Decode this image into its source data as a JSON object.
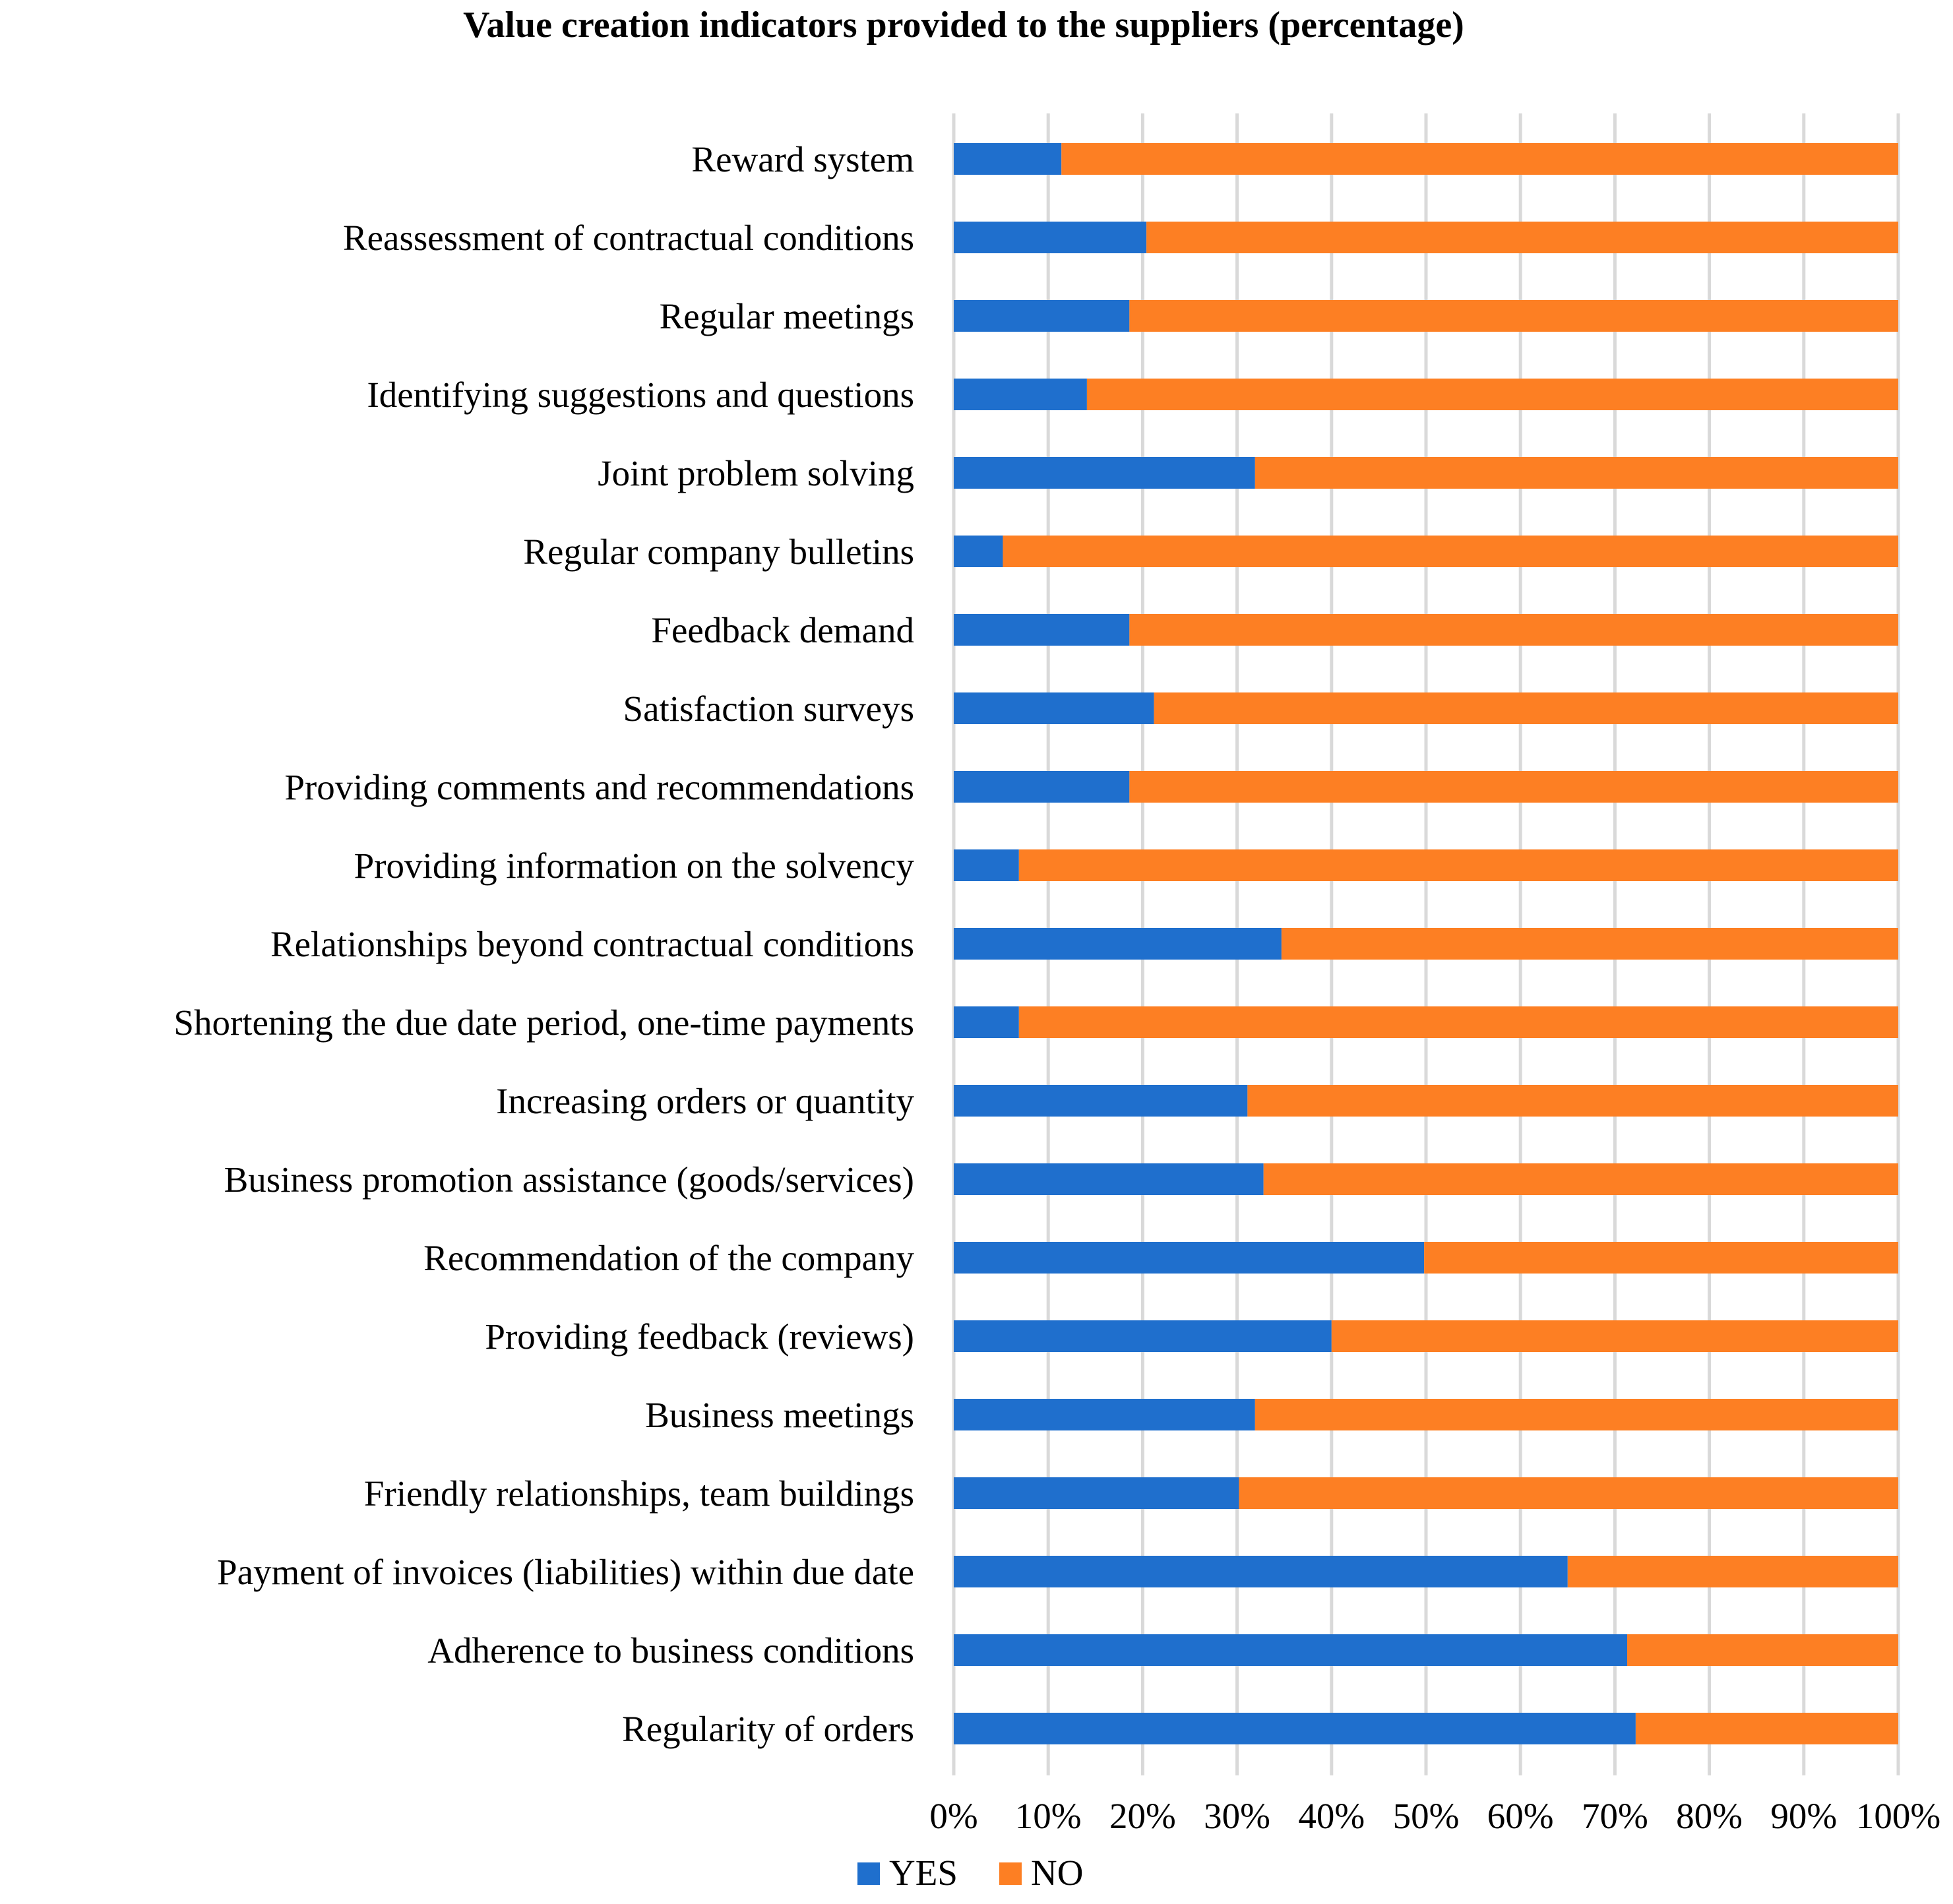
{
  "chart_data": {
    "type": "bar",
    "orientation": "horizontal",
    "stacked": true,
    "percent_stacked": true,
    "title": "Value creation indicators provided to the suppliers (percentage)",
    "xlabel": "",
    "ylabel": "",
    "xlim": [
      0,
      100
    ],
    "grid": true,
    "legend_position": "bottom",
    "x_ticks": [
      "0%",
      "10%",
      "20%",
      "30%",
      "40%",
      "50%",
      "60%",
      "70%",
      "80%",
      "90%",
      "100%"
    ],
    "categories": [
      "Reward system",
      "Reassessment of contractual conditions",
      "Regular meetings",
      "Identifying suggestions and questions",
      "Joint problem solving",
      "Regular company bulletins",
      "Feedback demand",
      "Satisfaction surveys",
      "Providing comments and recommendations",
      "Providing information on the solvency",
      "Relationships beyond contractual conditions",
      "Shortening the due date period, one-time payments",
      "Increasing  orders or quantity",
      "Business promotion assistance (goods/services)",
      "Recommendation of the company",
      "Providing feedback (reviews)",
      "Business meetings",
      "Friendly relationships, team buildings",
      "Payment of invoices (liabilities) within due date",
      "Adherence to business conditions",
      "Regularity of orders"
    ],
    "series": [
      {
        "name": "YES",
        "color": "#1f6fcd",
        "values": [
          11.4,
          20.4,
          18.6,
          14.1,
          31.9,
          5.2,
          18.6,
          21.2,
          18.6,
          6.9,
          34.7,
          6.9,
          31.1,
          32.8,
          49.8,
          40.0,
          31.9,
          30.2,
          65.0,
          71.3,
          72.2
        ]
      },
      {
        "name": "NO",
        "color": "#fd7f23",
        "values": [
          88.6,
          79.6,
          81.4,
          85.9,
          68.1,
          94.8,
          81.4,
          78.8,
          81.4,
          93.1,
          65.3,
          93.1,
          68.9,
          67.2,
          50.2,
          60.0,
          68.1,
          69.8,
          35.0,
          28.7,
          27.8
        ]
      }
    ]
  }
}
